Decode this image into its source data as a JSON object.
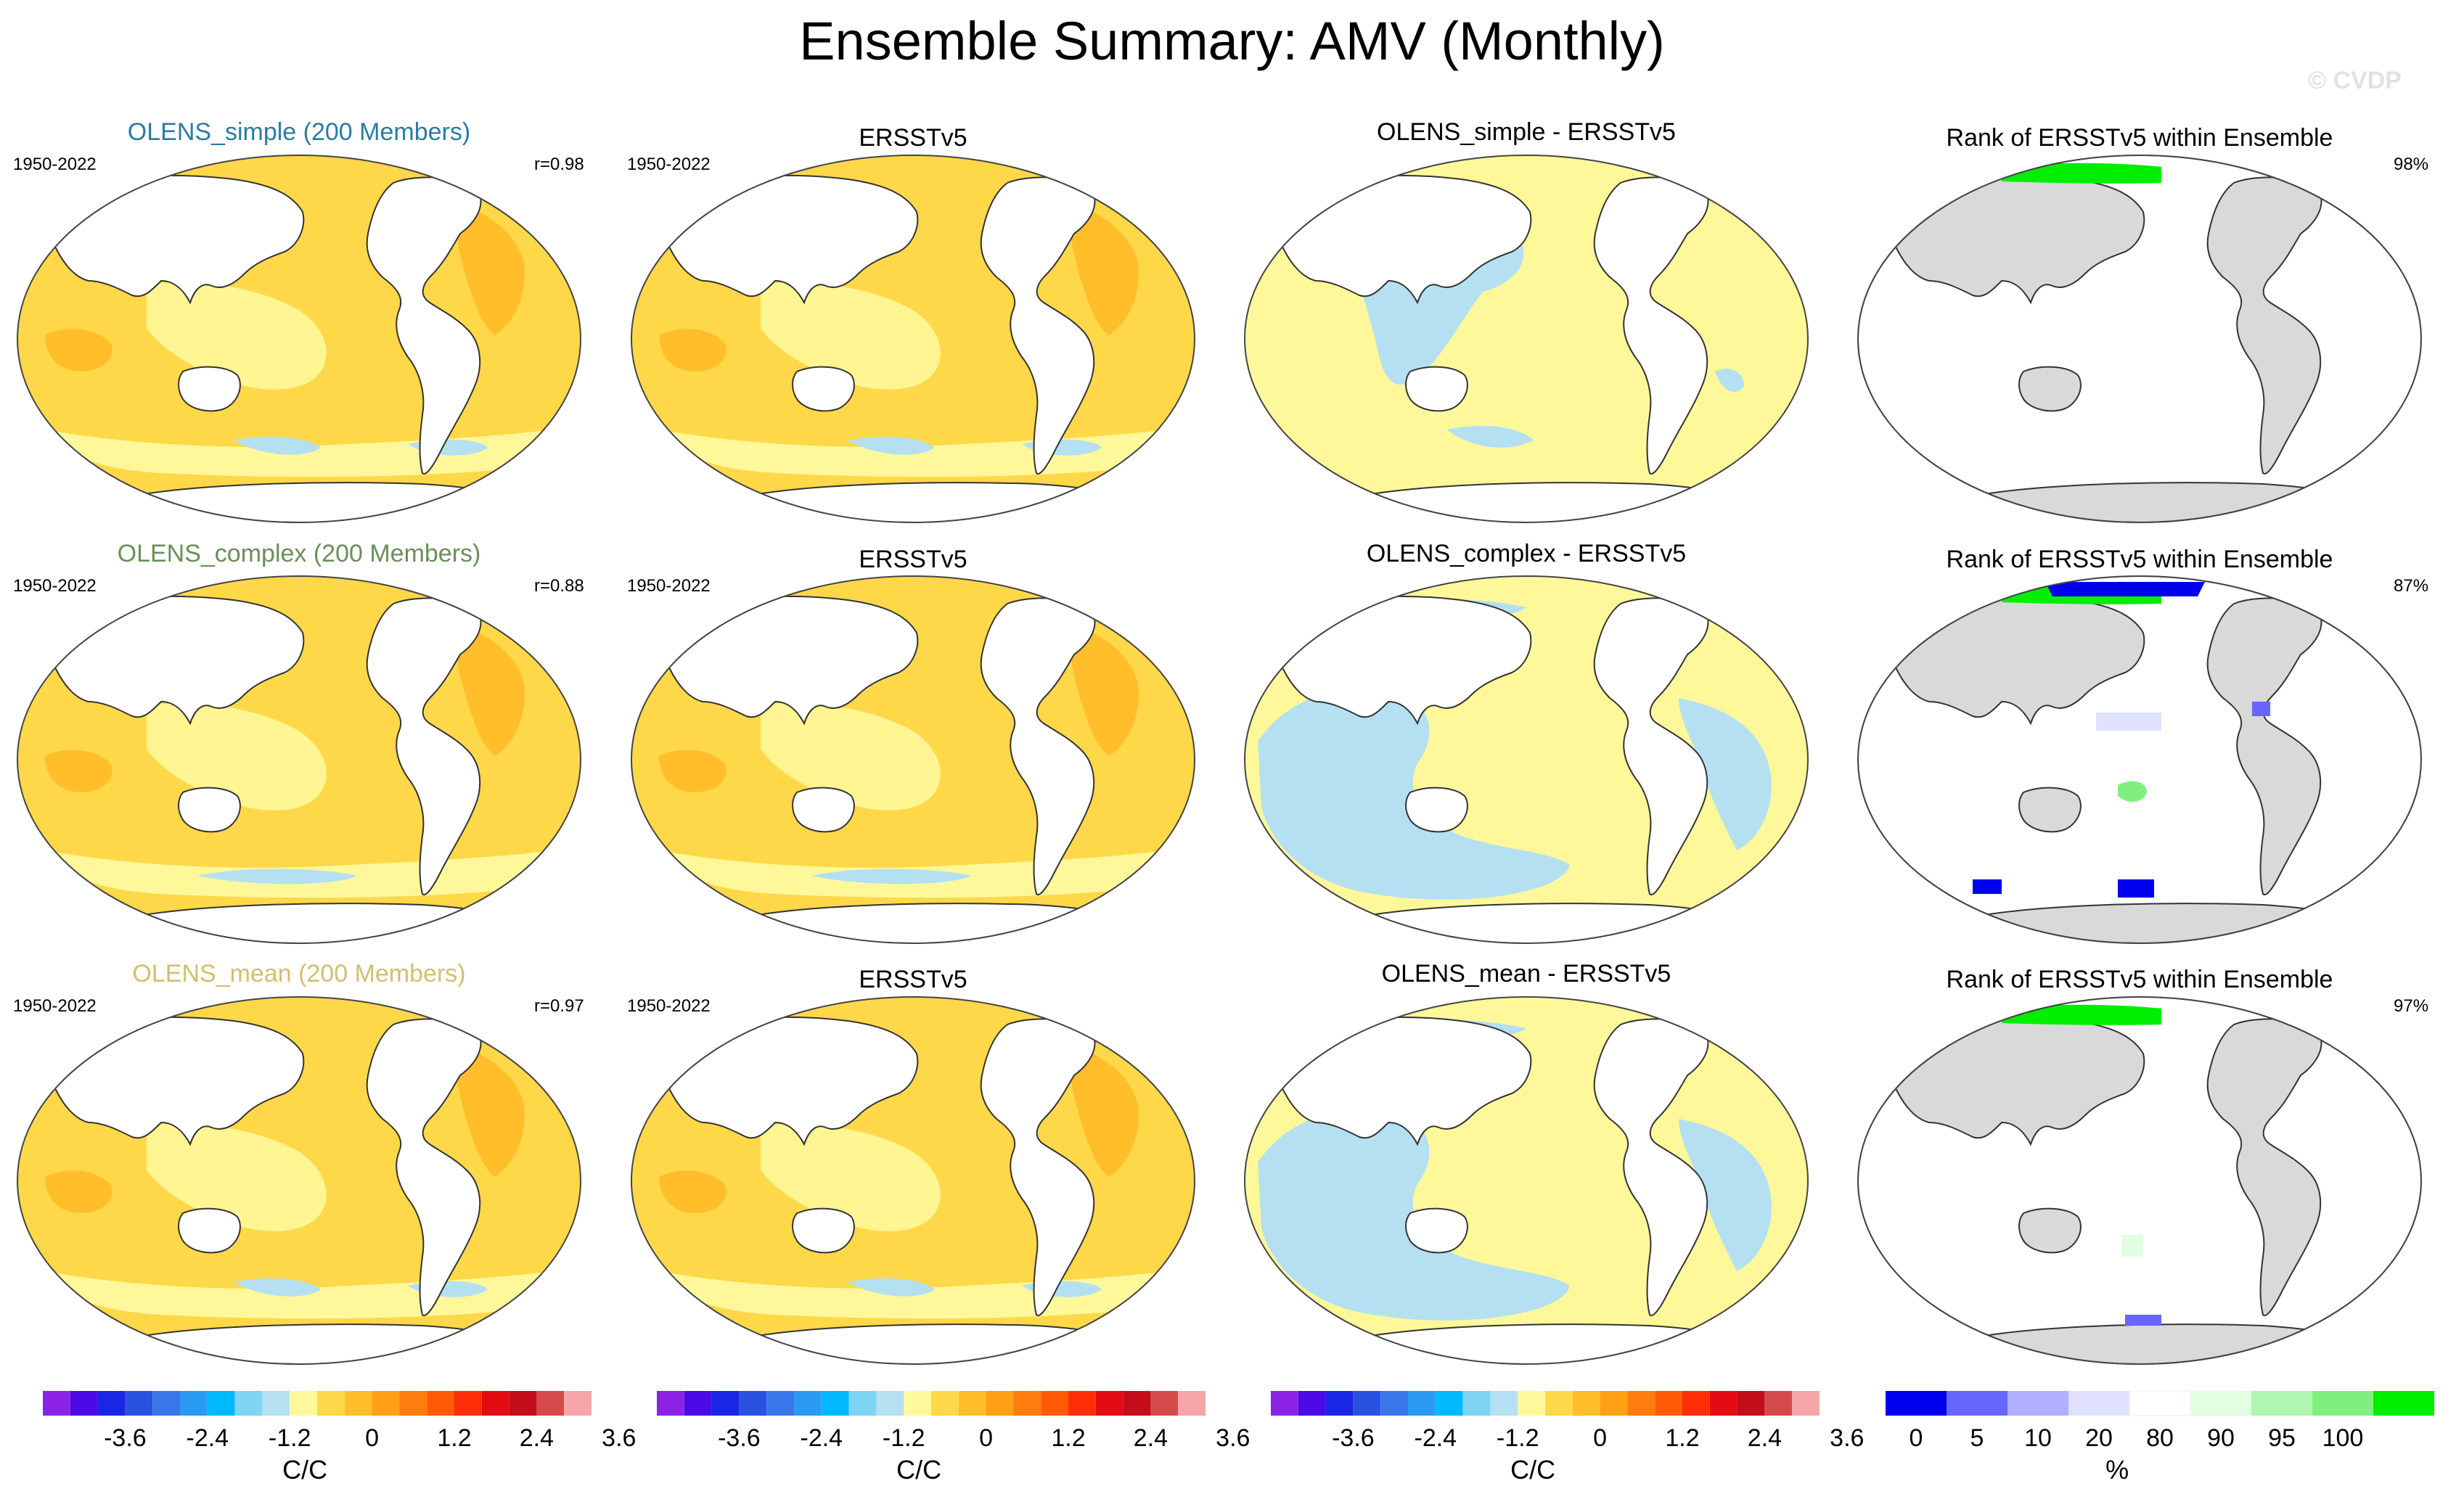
{
  "title": "Ensemble Summary: AMV (Monthly)",
  "watermark": "© CVDP",
  "colors": {
    "background": "#ffffff",
    "land_rank": "#d9d9d9",
    "coast": "#333333",
    "sst_scale": [
      "#8d22e7",
      "#4b0ae6",
      "#1a26e6",
      "#2a52e0",
      "#3b76e8",
      "#2a9af3",
      "#00b9ff",
      "#7fd3f3",
      "#b4e0f2",
      "#fff99b",
      "#ffd84a",
      "#ffbe2a",
      "#ffa015",
      "#ff7d0d",
      "#ff5a08",
      "#ff2d08",
      "#e50b12",
      "#c30d1a",
      "#d44a4a",
      "#f6a5a9"
    ],
    "rank_scale": [
      "#0000ee",
      "#6666ff",
      "#b0b0ff",
      "#e0e0ff",
      "#ffffff",
      "#e3ffe3",
      "#b0f5b0",
      "#7ff07f",
      "#00ee00"
    ],
    "field": {
      "pale_yellow": "#fff89a",
      "yellow": "#ffd84a",
      "orange": "#ffbe2a",
      "blue": "#b4e0f2"
    }
  },
  "rows": [
    {
      "model": "OLENS_simple (200 Members)",
      "model_color": "#2a7ca0",
      "period": "1950-2022",
      "r": "r=0.98",
      "obs": "ERSSTv5",
      "diff_title": "OLENS_simple - ERSSTv5",
      "rank_title": "Rank of ERSSTv5 within Ensemble",
      "rank_pct": "98%"
    },
    {
      "model": "OLENS_complex (200 Members)",
      "model_color": "#6a8f5a",
      "period": "1950-2022",
      "r": "r=0.88",
      "obs": "ERSSTv5",
      "diff_title": "OLENS_complex - ERSSTv5",
      "rank_title": "Rank of ERSSTv5 within Ensemble",
      "rank_pct": "87%"
    },
    {
      "model": "OLENS_mean (200 Members)",
      "model_color": "#d0c070",
      "period": "1950-2022",
      "r": "r=0.97",
      "obs": "ERSSTv5",
      "diff_title": "OLENS_mean - ERSSTv5",
      "rank_title": "Rank of ERSSTv5 within Ensemble",
      "rank_pct": "97%"
    }
  ],
  "colorbar_sst": {
    "labels": [
      "-3.6",
      "-2.4",
      "-1.2",
      "0",
      "1.2",
      "2.4",
      "3.6"
    ],
    "unit": "C/C"
  },
  "colorbar_rank": {
    "labels": [
      "0",
      "5",
      "10",
      "20",
      "80",
      "90",
      "95",
      "100"
    ],
    "unit": "%"
  }
}
